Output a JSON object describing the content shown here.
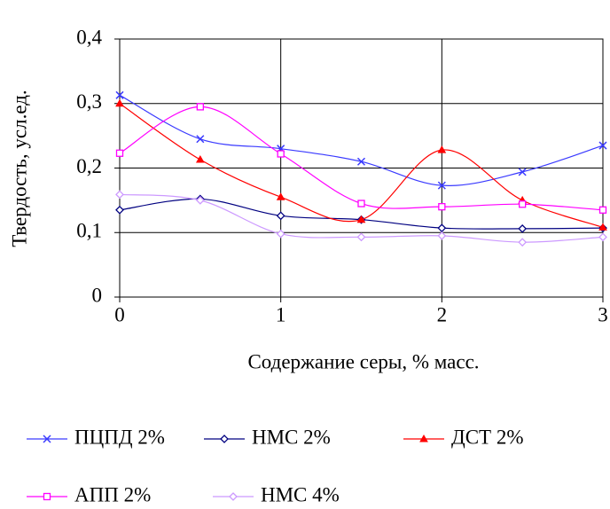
{
  "chart_data": {
    "type": "line",
    "x_label": "Содержание серы, % масс.",
    "y_label": "Твердость, усл.ед.",
    "x": [
      0,
      0.5,
      1,
      1.5,
      2,
      2.5,
      3
    ],
    "xlim": [
      0,
      3
    ],
    "xticks": [
      0,
      1,
      2,
      3
    ],
    "ylim": [
      0,
      0.4
    ],
    "yticks": [
      0,
      {
        "value": 0.1,
        "label": "0,1"
      },
      {
        "value": 0.2,
        "label": "0,2"
      },
      {
        "value": 0.3,
        "label": "0,3"
      },
      {
        "value": 0.4,
        "label": "0,4"
      }
    ],
    "grid": true,
    "smooth": true,
    "legend": "bottom",
    "series": [
      {
        "name": "ПЦПД 2%",
        "color": "#3a3aff",
        "marker": "x",
        "values": [
          0.313,
          0.245,
          0.23,
          0.21,
          0.173,
          0.194,
          0.235
        ]
      },
      {
        "name": "НМС 2%",
        "color": "#000080",
        "marker": "diamond",
        "values": [
          0.135,
          0.152,
          0.126,
          0.12,
          0.107,
          0.106,
          0.107
        ]
      },
      {
        "name": "ДСТ 2%",
        "color": "#ff0000",
        "marker": "triangle",
        "values": [
          0.3,
          0.213,
          0.155,
          0.12,
          0.228,
          0.15,
          0.108
        ]
      },
      {
        "name": "АПП 2%",
        "color": "#ff00ff",
        "marker": "square",
        "values": [
          0.223,
          0.295,
          0.222,
          0.145,
          0.14,
          0.144,
          0.135
        ]
      },
      {
        "name": "НМС 4%",
        "color": "#cc99ff",
        "marker": "diamond",
        "values": [
          0.159,
          0.15,
          0.098,
          0.093,
          0.095,
          0.085,
          0.093
        ]
      }
    ]
  }
}
